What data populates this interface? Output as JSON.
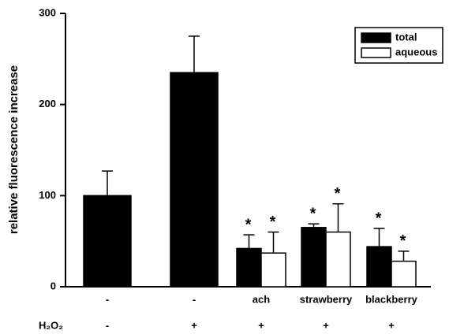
{
  "chart_data": {
    "type": "bar",
    "y_label": "relative fluorescence increase",
    "categories": [
      "-",
      "-",
      "ach",
      "strawberry",
      "blackberry"
    ],
    "row_label": "H₂O₂",
    "row_values": [
      "-",
      "+",
      "+",
      "+",
      "+"
    ],
    "series": [
      {
        "name": "total",
        "color": "#000000",
        "values": [
          100,
          235,
          42,
          65,
          44
        ],
        "errors": [
          27,
          40,
          15,
          4,
          20
        ],
        "markers": [
          null,
          null,
          "*",
          "*",
          "*"
        ]
      },
      {
        "name": "aqueous",
        "color": "#ffffff",
        "values": [
          null,
          null,
          37,
          60,
          28
        ],
        "errors": [
          null,
          null,
          23,
          31,
          11
        ],
        "markers": [
          null,
          null,
          "*",
          "*",
          "*"
        ]
      }
    ],
    "ylim": [
      0,
      300
    ],
    "yticks": [
      0,
      100,
      200,
      300
    ],
    "legend": "upper right"
  }
}
